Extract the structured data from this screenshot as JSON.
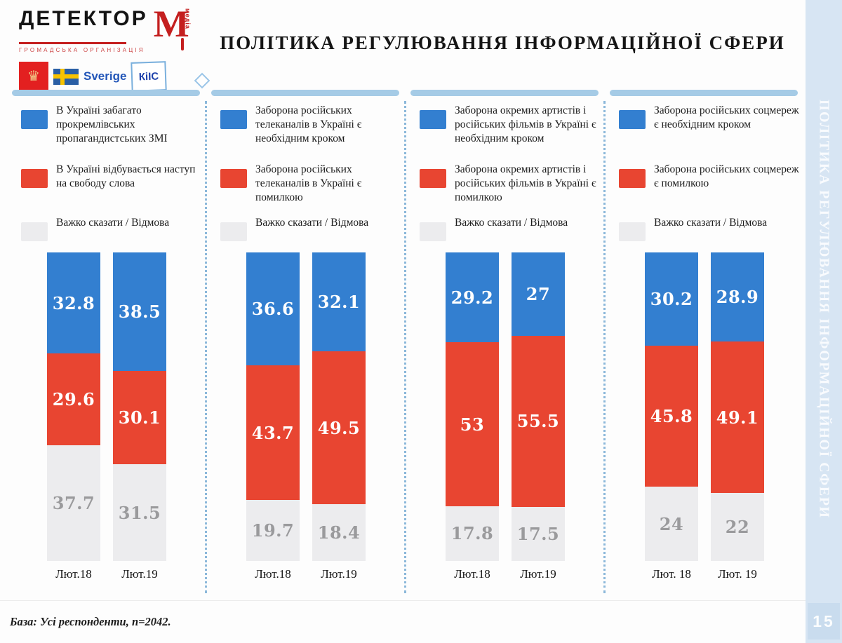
{
  "page": {
    "title": "ПОЛІТИКА РЕГУЛЮВАННЯ ІНФОРМАЦІЙНОЇ СФЕРИ"
  },
  "logo": {
    "brand": "ДЕТЕКТОР",
    "brand_m": "М",
    "brand_media": "медіа",
    "org_line": "ГРОМАДСЬКА ОРГАНІЗАЦІЯ",
    "sverige_label": "Sverige",
    "kiis_label": "КіІС",
    "danish_crest_icon": "♛"
  },
  "sidebar": {
    "vertical_title": "ПОЛІТИКА РЕГУЛЮВАННЯ ІНФОРМАЦІЙНОЇ СФЕРИ",
    "page_number": "15"
  },
  "footer": {
    "base_note": "База: Усі респонденти, n=2042."
  },
  "colors": {
    "blue": "#337fd0",
    "red": "#e84531",
    "gray": "#ececee",
    "gray_text": "#9a9a9c",
    "accent_bar": "#a5cbe6",
    "sidebar_bg": "#d7e5f3"
  },
  "chart_data": [
    {
      "type": "bar",
      "stacked": true,
      "categories": [
        "Лют.18",
        "Лют.19"
      ],
      "ylim": [
        0,
        100
      ],
      "unit": "%",
      "series": [
        {
          "name": "В Україні забагато прокремлівських пропагандистських ЗМІ",
          "color": "#337fd0",
          "label_color": "#ffffff",
          "values": [
            32.8,
            38.5
          ]
        },
        {
          "name": "В Україні відбувається наступ на свободу слова",
          "color": "#e84531",
          "label_color": "#ffffff",
          "values": [
            29.6,
            30.1
          ]
        },
        {
          "name": "Важко сказати / Відмова",
          "color": "#ececee",
          "label_color": "#9a9a9c",
          "values": [
            37.7,
            31.5
          ]
        }
      ]
    },
    {
      "type": "bar",
      "stacked": true,
      "categories": [
        "Лют.18",
        "Лют.19"
      ],
      "ylim": [
        0,
        100
      ],
      "unit": "%",
      "series": [
        {
          "name": "Заборона російських телеканалів в Україні є необхідним кроком",
          "color": "#337fd0",
          "label_color": "#ffffff",
          "values": [
            36.6,
            32.1
          ]
        },
        {
          "name": "Заборона російських телеканалів в Україні є помилкою",
          "color": "#e84531",
          "label_color": "#ffffff",
          "values": [
            43.7,
            49.5
          ]
        },
        {
          "name": "Важко сказати / Відмова",
          "color": "#ececee",
          "label_color": "#9a9a9c",
          "values": [
            19.7,
            18.4
          ]
        }
      ]
    },
    {
      "type": "bar",
      "stacked": true,
      "categories": [
        "Лют.18",
        "Лют.19"
      ],
      "ylim": [
        0,
        100
      ],
      "unit": "%",
      "series": [
        {
          "name": "Заборона окремих артистів і російських фільмів в Україні є необхідним кроком",
          "color": "#337fd0",
          "label_color": "#ffffff",
          "values": [
            29.2,
            27
          ]
        },
        {
          "name": "Заборона окремих артистів і російських фільмів в Україні є помилкою",
          "color": "#e84531",
          "label_color": "#ffffff",
          "values": [
            53,
            55.5
          ]
        },
        {
          "name": "Важко сказати / Відмова",
          "color": "#ececee",
          "label_color": "#9a9a9c",
          "values": [
            17.8,
            17.5
          ]
        }
      ]
    },
    {
      "type": "bar",
      "stacked": true,
      "categories": [
        "Лют. 18",
        "Лют. 19"
      ],
      "ylim": [
        0,
        100
      ],
      "unit": "%",
      "series": [
        {
          "name": "Заборона російських соцмереж є необхідним кроком",
          "color": "#337fd0",
          "label_color": "#ffffff",
          "values": [
            30.2,
            28.9
          ]
        },
        {
          "name": "Заборона російських соцмереж є помилкою",
          "color": "#e84531",
          "label_color": "#ffffff",
          "values": [
            45.8,
            49.1
          ]
        },
        {
          "name": "Важко сказати / Відмова",
          "color": "#ececee",
          "label_color": "#9a9a9c",
          "values": [
            24,
            22
          ]
        }
      ]
    }
  ]
}
